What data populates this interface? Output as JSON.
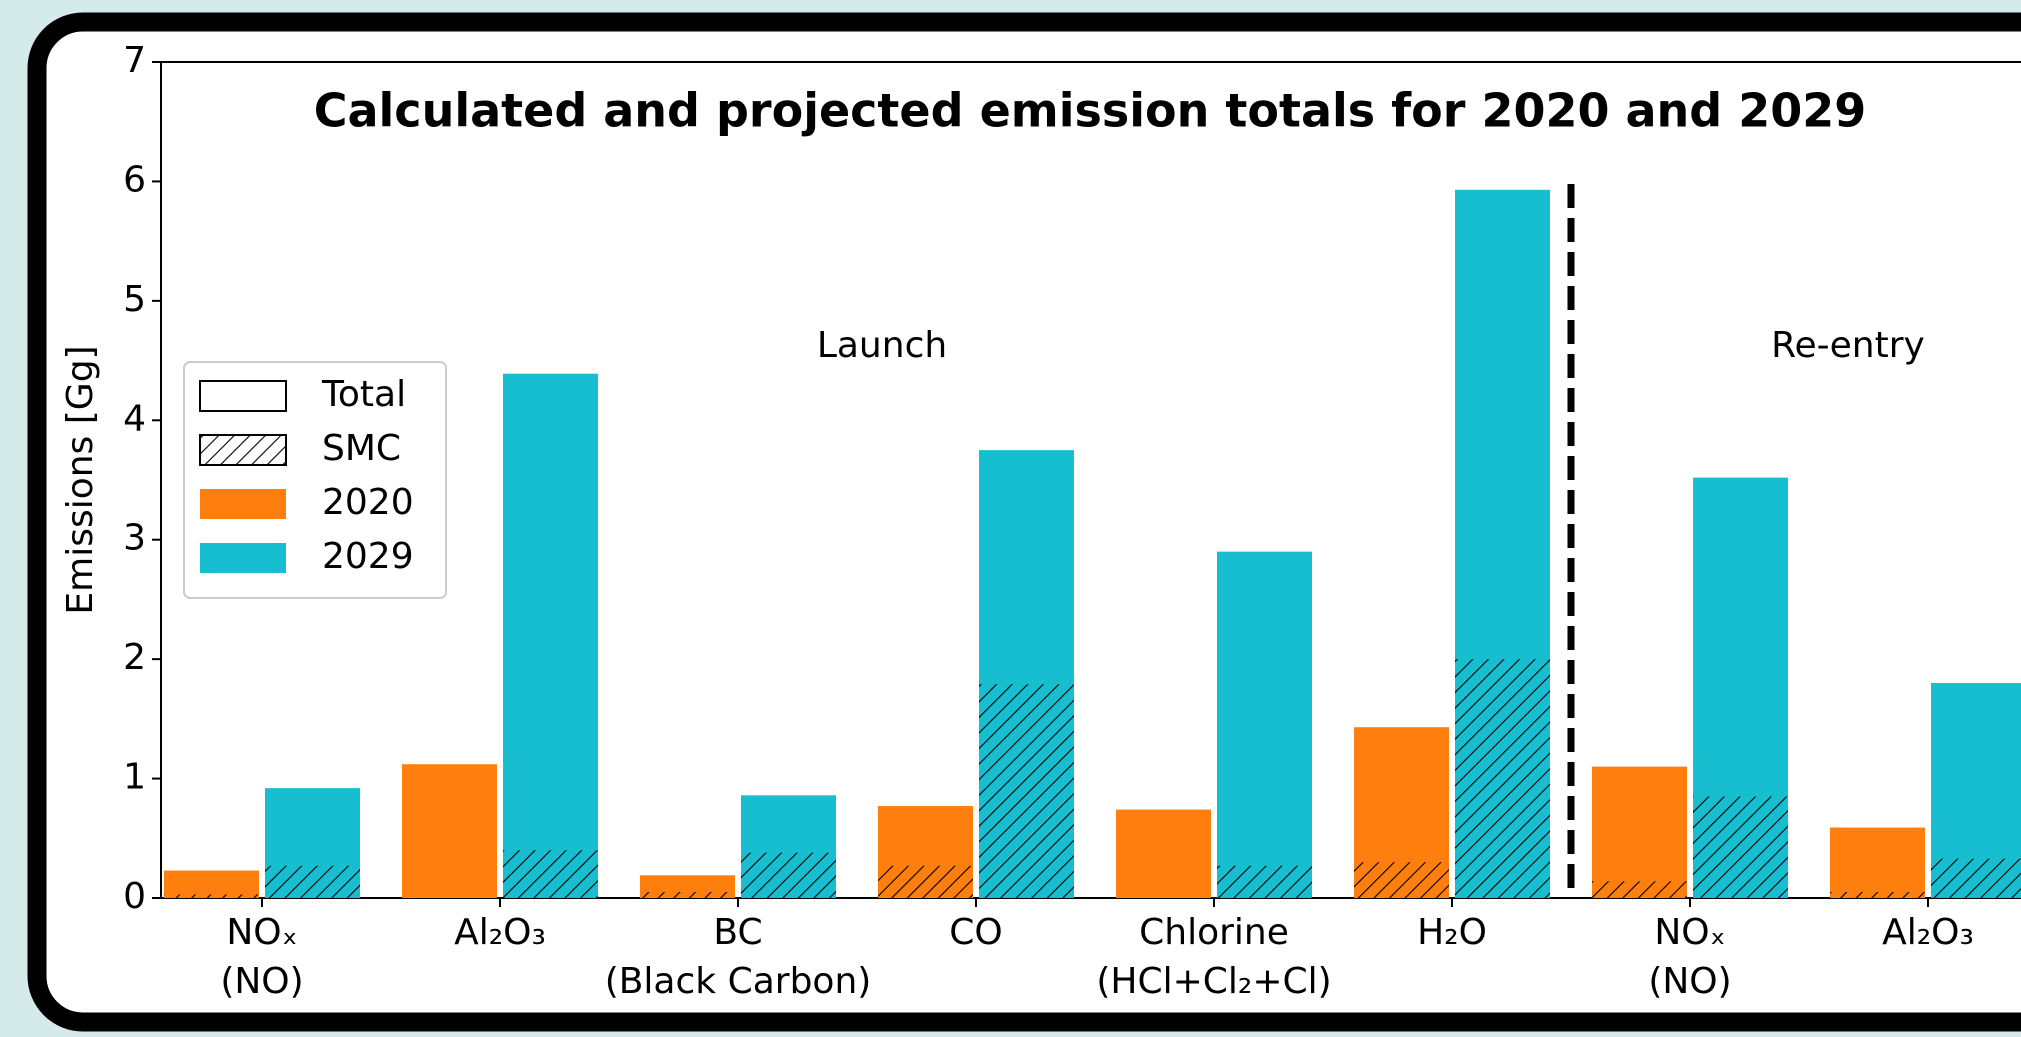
{
  "chart_data": {
    "type": "bar",
    "title": "Calculated and projected emission totals for 2020 and 2029",
    "ylabel": "Emissions [Gg]",
    "categories": [
      "NOₓ\n(NO)",
      "Al₂O₃",
      "BC\n(Black Carbon)",
      "CO",
      "Chlorine\n(HCl+Cl₂+Cl)",
      "H₂O",
      "NOₓ\n(NO)",
      "Al₂O₃"
    ],
    "series": [
      {
        "name": "2020",
        "color": "#ff7f0e",
        "values": [
          0.23,
          1.12,
          0.19,
          0.77,
          0.74,
          1.43,
          1.1,
          0.59
        ],
        "smc_values": [
          0.03,
          0,
          0.05,
          0.27,
          0,
          0.3,
          0.14,
          0.05
        ]
      },
      {
        "name": "2029",
        "color": "#17becf",
        "values": [
          0.92,
          4.39,
          0.86,
          3.75,
          2.9,
          5.93,
          3.52,
          1.8
        ],
        "smc_values": [
          0.27,
          0.4,
          0.38,
          1.79,
          0.27,
          2.0,
          0.85,
          0.33
        ]
      }
    ],
    "legend_styles": [
      {
        "name": "Total"
      },
      {
        "name": "SMC"
      }
    ],
    "annotations": [
      {
        "text": "Launch"
      },
      {
        "text": "Re-entry"
      }
    ],
    "ylim": [
      0,
      7
    ],
    "yticks": [
      0,
      1,
      2,
      3,
      4,
      5,
      6,
      7
    ]
  }
}
